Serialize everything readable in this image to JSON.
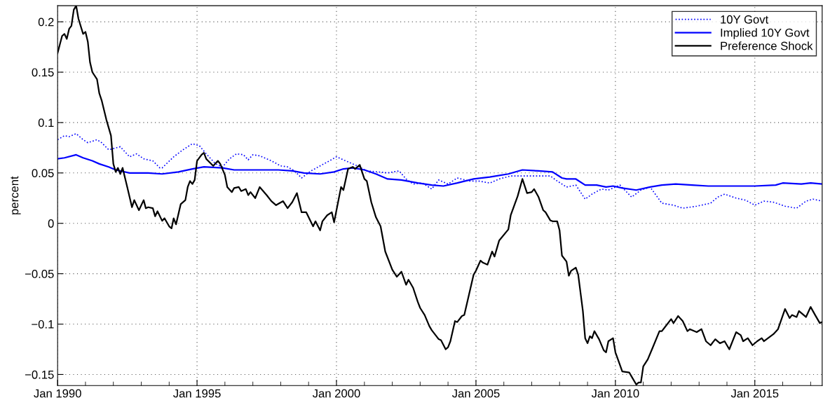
{
  "chart_data": {
    "type": "line",
    "ylabel": "percent",
    "xlim": [
      "1990-01",
      "2017-06"
    ],
    "ylim": [
      -0.161,
      0.216
    ],
    "xticks": [
      {
        "value": "1990-01",
        "label": "Jan 1990"
      },
      {
        "value": "1991-01",
        "label": null
      },
      {
        "value": "1992-01",
        "label": null
      },
      {
        "value": "1993-01",
        "label": null
      },
      {
        "value": "1994-01",
        "label": null
      },
      {
        "value": "1995-01",
        "label": "Jan 1995"
      },
      {
        "value": "1996-01",
        "label": null
      },
      {
        "value": "1997-01",
        "label": null
      },
      {
        "value": "1998-01",
        "label": null
      },
      {
        "value": "1999-01",
        "label": null
      },
      {
        "value": "2000-01",
        "label": "Jan 2000"
      },
      {
        "value": "2001-01",
        "label": null
      },
      {
        "value": "2002-01",
        "label": null
      },
      {
        "value": "2003-01",
        "label": null
      },
      {
        "value": "2004-01",
        "label": null
      },
      {
        "value": "2005-01",
        "label": "Jan 2005"
      },
      {
        "value": "2006-01",
        "label": null
      },
      {
        "value": "2007-01",
        "label": null
      },
      {
        "value": "2008-01",
        "label": null
      },
      {
        "value": "2009-01",
        "label": null
      },
      {
        "value": "2010-01",
        "label": "Jan 2010"
      },
      {
        "value": "2011-01",
        "label": null
      },
      {
        "value": "2012-01",
        "label": null
      },
      {
        "value": "2013-01",
        "label": null
      },
      {
        "value": "2014-01",
        "label": null
      },
      {
        "value": "2015-01",
        "label": "Jan 2015"
      },
      {
        "value": "2016-01",
        "label": null
      },
      {
        "value": "2017-01",
        "label": null
      }
    ],
    "yticks": [
      {
        "value": -0.15,
        "label": "−0.15"
      },
      {
        "value": -0.1,
        "label": "−0.1"
      },
      {
        "value": -0.05,
        "label": "−0.05"
      },
      0,
      0.05,
      0.1,
      0.15,
      0.2
    ],
    "grid": true,
    "legend": "top right",
    "series": [
      {
        "name": "10Y Govt",
        "color": "#0000ff",
        "line_style": "dotted",
        "x": [
          "1990-01",
          "1990-04",
          "1990-06",
          "1990-09",
          "1990-12",
          "1991-02",
          "1991-06",
          "1991-08",
          "1991-11",
          "1992-04",
          "1992-08",
          "1992-11",
          "1993-02",
          "1993-06",
          "1993-09",
          "1993-10",
          "1994-03",
          "1994-07",
          "1994-11",
          "1995-02",
          "1995-05",
          "1995-09",
          "1995-12",
          "1996-03",
          "1996-06",
          "1996-09",
          "1996-11",
          "1997-01",
          "1997-04",
          "1997-09",
          "1998-01",
          "1998-04",
          "1998-07",
          "1998-10",
          "1999-02",
          "1999-06",
          "1999-10",
          "2000-01",
          "2000-05",
          "2000-10",
          "2001-02",
          "2001-07",
          "2001-11",
          "2002-04",
          "2002-07",
          "2002-10",
          "2003-02",
          "2003-06",
          "2003-09",
          "2004-01",
          "2004-05",
          "2004-10",
          "2005-02",
          "2005-07",
          "2005-11",
          "2006-04",
          "2006-09",
          "2007-03",
          "2007-09",
          "2007-12",
          "2008-04",
          "2008-08",
          "2008-12",
          "2009-03",
          "2009-07",
          "2009-10",
          "2010-03",
          "2010-08",
          "2010-12",
          "2011-04",
          "2011-09",
          "2012-02",
          "2012-06",
          "2012-12",
          "2013-06",
          "2013-09",
          "2013-12",
          "2014-05",
          "2014-09",
          "2015-01",
          "2015-05",
          "2015-09",
          "2016-02",
          "2016-07",
          "2016-11",
          "2017-02",
          "2017-06"
        ],
        "values": [
          0.083,
          0.087,
          0.086,
          0.089,
          0.083,
          0.08,
          0.083,
          0.08,
          0.073,
          0.076,
          0.066,
          0.069,
          0.064,
          0.062,
          0.055,
          0.055,
          0.066,
          0.073,
          0.079,
          0.077,
          0.069,
          0.059,
          0.056,
          0.064,
          0.069,
          0.068,
          0.063,
          0.068,
          0.067,
          0.062,
          0.057,
          0.056,
          0.052,
          0.045,
          0.052,
          0.057,
          0.062,
          0.066,
          0.062,
          0.057,
          0.052,
          0.051,
          0.05,
          0.052,
          0.044,
          0.039,
          0.04,
          0.034,
          0.043,
          0.039,
          0.045,
          0.042,
          0.042,
          0.04,
          0.044,
          0.047,
          0.047,
          0.047,
          0.047,
          0.042,
          0.036,
          0.038,
          0.024,
          0.029,
          0.034,
          0.033,
          0.038,
          0.026,
          0.033,
          0.036,
          0.02,
          0.018,
          0.015,
          0.017,
          0.02,
          0.026,
          0.029,
          0.025,
          0.023,
          0.018,
          0.022,
          0.021,
          0.017,
          0.015,
          0.022,
          0.024,
          0.022
        ]
      },
      {
        "name": "Implied 10Y Govt",
        "color": "#0000ff",
        "line_style": "solid",
        "x": [
          "1990-01",
          "1990-04",
          "1990-09",
          "1990-12",
          "1991-04",
          "1991-07",
          "1991-11",
          "1992-02",
          "1992-08",
          "1993-04",
          "1993-10",
          "1994-05",
          "1994-11",
          "1995-04",
          "1995-12",
          "1996-05",
          "1997-03",
          "1997-12",
          "1998-06",
          "1998-11",
          "1999-06",
          "1999-12",
          "2000-04",
          "2000-08",
          "2001-01",
          "2001-06",
          "2001-11",
          "2002-05",
          "2002-12",
          "2003-06",
          "2003-11",
          "2004-05",
          "2004-12",
          "2005-07",
          "2006-03",
          "2006-09",
          "2007-04",
          "2007-10",
          "2008-02",
          "2008-04",
          "2008-08",
          "2008-12",
          "2009-05",
          "2009-09",
          "2009-12",
          "2010-04",
          "2010-10",
          "2011-04",
          "2011-09",
          "2012-03",
          "2012-10",
          "2013-05",
          "2014-02",
          "2015-01",
          "2015-10",
          "2016-01",
          "2016-09",
          "2017-01",
          "2017-06"
        ],
        "values": [
          0.064,
          0.065,
          0.068,
          0.065,
          0.062,
          0.059,
          0.056,
          0.053,
          0.05,
          0.05,
          0.049,
          0.051,
          0.054,
          0.056,
          0.055,
          0.053,
          0.053,
          0.053,
          0.052,
          0.05,
          0.049,
          0.051,
          0.054,
          0.055,
          0.053,
          0.049,
          0.044,
          0.043,
          0.04,
          0.038,
          0.037,
          0.04,
          0.044,
          0.046,
          0.049,
          0.053,
          0.052,
          0.051,
          0.045,
          0.044,
          0.044,
          0.038,
          0.038,
          0.036,
          0.037,
          0.035,
          0.033,
          0.036,
          0.038,
          0.039,
          0.038,
          0.037,
          0.037,
          0.037,
          0.038,
          0.04,
          0.039,
          0.04,
          0.039
        ]
      },
      {
        "name": "Preference Shock",
        "color": "#000000",
        "line_style": "solid",
        "x": [
          "1990-01",
          "1990-02",
          "1990-03",
          "1990-04",
          "1990-05",
          "1990-06",
          "1990-07",
          "1990-08",
          "1990-09",
          "1990-10",
          "1990-12",
          "1991-01",
          "1991-02",
          "1991-03",
          "1991-04",
          "1991-06",
          "1991-07",
          "1991-08",
          "1991-10",
          "1991-12",
          "1992-01",
          "1992-02",
          "1992-03",
          "1992-04",
          "1992-05",
          "1992-07",
          "1992-09",
          "1992-10",
          "1992-12",
          "1993-02",
          "1993-03",
          "1993-04",
          "1993-06",
          "1993-07",
          "1993-08",
          "1993-10",
          "1993-11",
          "1994-01",
          "1994-02",
          "1994-03",
          "1994-04",
          "1994-06",
          "1994-08",
          "1994-09",
          "1994-10",
          "1994-11",
          "1994-12",
          "1995-01",
          "1995-03",
          "1995-04",
          "1995-05",
          "1995-08",
          "1995-10",
          "1995-11",
          "1996-01",
          "1996-02",
          "1996-04",
          "1996-05",
          "1996-07",
          "1996-08",
          "1996-10",
          "1996-11",
          "1996-12",
          "1997-02",
          "1997-04",
          "1997-07",
          "1997-09",
          "1997-11",
          "1998-02",
          "1998-04",
          "1998-06",
          "1998-08",
          "1998-10",
          "1998-12",
          "1999-03",
          "1999-04",
          "1999-06",
          "1999-07",
          "1999-09",
          "1999-11",
          "1999-12",
          "2000-03",
          "2000-04",
          "2000-06",
          "2000-08",
          "2000-09",
          "2000-11",
          "2001-01",
          "2001-02",
          "2001-04",
          "2001-06",
          "2001-08",
          "2001-10",
          "2002-01",
          "2002-03",
          "2002-05",
          "2002-07",
          "2002-08",
          "2002-10",
          "2002-12",
          "2003-01",
          "2003-03",
          "2003-05",
          "2003-06",
          "2003-09",
          "2003-10",
          "2003-12",
          "2004-01",
          "2004-02",
          "2004-04",
          "2004-05",
          "2004-07",
          "2004-08",
          "2004-10",
          "2004-12",
          "2005-01",
          "2005-03",
          "2005-04",
          "2005-06",
          "2005-08",
          "2005-09",
          "2005-11",
          "2006-03",
          "2006-04",
          "2006-07",
          "2006-09",
          "2006-11",
          "2007-01",
          "2007-02",
          "2007-04",
          "2007-06",
          "2007-07",
          "2007-09",
          "2007-10",
          "2007-12",
          "2008-01",
          "2008-02",
          "2008-04",
          "2008-05",
          "2008-06",
          "2008-08",
          "2008-09",
          "2008-11",
          "2008-12",
          "2009-01",
          "2009-02",
          "2009-03",
          "2009-04",
          "2009-06",
          "2009-08",
          "2009-09",
          "2009-10",
          "2009-12",
          "2010-01",
          "2010-04",
          "2010-07",
          "2010-08",
          "2010-10",
          "2010-11",
          "2010-12",
          "2011-01",
          "2011-03",
          "2011-05",
          "2011-08",
          "2011-09",
          "2011-11",
          "2012-01",
          "2012-02",
          "2012-04",
          "2012-06",
          "2012-08",
          "2012-09",
          "2012-12",
          "2013-02",
          "2013-04",
          "2013-06",
          "2013-08",
          "2013-10",
          "2013-12",
          "2014-02",
          "2014-05",
          "2014-07",
          "2014-08",
          "2014-10",
          "2014-12",
          "2015-02",
          "2015-04",
          "2015-05",
          "2015-09",
          "2015-11",
          "2016-02",
          "2016-04",
          "2016-05",
          "2016-07",
          "2016-08",
          "2016-11",
          "2017-01",
          "2017-03",
          "2017-05",
          "2017-06"
        ],
        "values": [
          0.169,
          0.178,
          0.186,
          0.188,
          0.183,
          0.193,
          0.196,
          0.212,
          0.216,
          0.203,
          0.188,
          0.19,
          0.18,
          0.16,
          0.15,
          0.143,
          0.129,
          0.122,
          0.103,
          0.087,
          0.059,
          0.051,
          0.055,
          0.049,
          0.055,
          0.036,
          0.016,
          0.023,
          0.013,
          0.023,
          0.015,
          0.016,
          0.015,
          0.007,
          0.012,
          0.0025,
          0.005,
          -0.003,
          -0.005,
          0.005,
          -0.001,
          0.019,
          0.023,
          0.036,
          0.042,
          0.039,
          0.043,
          0.062,
          0.068,
          0.07,
          0.064,
          0.057,
          0.062,
          0.059,
          0.048,
          0.036,
          0.031,
          0.035,
          0.036,
          0.032,
          0.034,
          0.028,
          0.031,
          0.025,
          0.036,
          0.028,
          0.022,
          0.018,
          0.022,
          0.015,
          0.021,
          0.03,
          0.011,
          0.011,
          -0.003,
          0.002,
          -0.007,
          0.002,
          0.008,
          0.011,
          0.001,
          0.036,
          0.033,
          0.054,
          0.056,
          0.054,
          0.058,
          0.044,
          0.042,
          0.021,
          0.006,
          -0.003,
          -0.028,
          -0.046,
          -0.053,
          -0.048,
          -0.061,
          -0.056,
          -0.064,
          -0.078,
          -0.084,
          -0.091,
          -0.102,
          -0.106,
          -0.115,
          -0.116,
          -0.125,
          -0.123,
          -0.117,
          -0.097,
          -0.098,
          -0.092,
          -0.091,
          -0.071,
          -0.051,
          -0.047,
          -0.037,
          -0.039,
          -0.041,
          -0.028,
          -0.033,
          -0.017,
          -0.006,
          0.008,
          0.027,
          0.044,
          0.03,
          0.031,
          0.034,
          0.026,
          0.013,
          0.011,
          0.003,
          0.002,
          0.002,
          -0.007,
          -0.032,
          -0.038,
          -0.052,
          -0.047,
          -0.044,
          -0.051,
          -0.087,
          -0.114,
          -0.119,
          -0.112,
          -0.114,
          -0.107,
          -0.115,
          -0.126,
          -0.128,
          -0.117,
          -0.114,
          -0.128,
          -0.147,
          -0.148,
          -0.152,
          -0.16,
          -0.158,
          -0.158,
          -0.142,
          -0.135,
          -0.124,
          -0.107,
          -0.107,
          -0.101,
          -0.095,
          -0.099,
          -0.092,
          -0.097,
          -0.107,
          -0.105,
          -0.108,
          -0.105,
          -0.117,
          -0.121,
          -0.115,
          -0.119,
          -0.117,
          -0.125,
          -0.108,
          -0.111,
          -0.117,
          -0.114,
          -0.121,
          -0.117,
          -0.114,
          -0.117,
          -0.11,
          -0.105,
          -0.085,
          -0.094,
          -0.091,
          -0.093,
          -0.087,
          -0.093,
          -0.083,
          -0.091,
          -0.099,
          -0.098
        ]
      }
    ]
  }
}
